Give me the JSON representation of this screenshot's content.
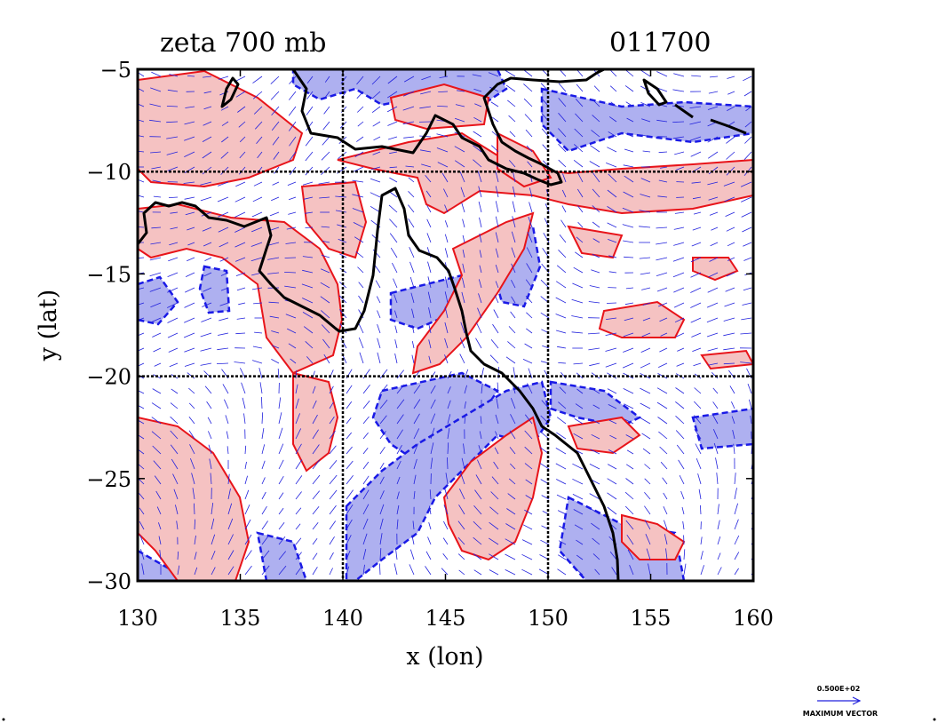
{
  "chart_data": {
    "type": "contour",
    "title": "zeta 700 mb",
    "time_label": "011700",
    "xlabel": "x (lon)",
    "ylabel": "y (lat)",
    "xlim": [
      130,
      160
    ],
    "ylim": [
      -30,
      -5
    ],
    "xticks": [
      130,
      135,
      140,
      145,
      150,
      155,
      160
    ],
    "yticks": [
      -5,
      -10,
      -15,
      -20,
      -25,
      -30
    ],
    "gridlines": {
      "x": [
        140,
        150
      ],
      "y": [
        -10,
        -20
      ]
    },
    "colors": {
      "positive_fill": "#f5c2c2",
      "positive_line": "#e8141a",
      "negative_fill": "#aeb0f0",
      "negative_line": "#1a1ae6",
      "vector": "#2222dd",
      "coast": "#000000"
    },
    "legend": {
      "value": "0.500E+02",
      "caption": "MAXIMUM VECTOR"
    }
  }
}
